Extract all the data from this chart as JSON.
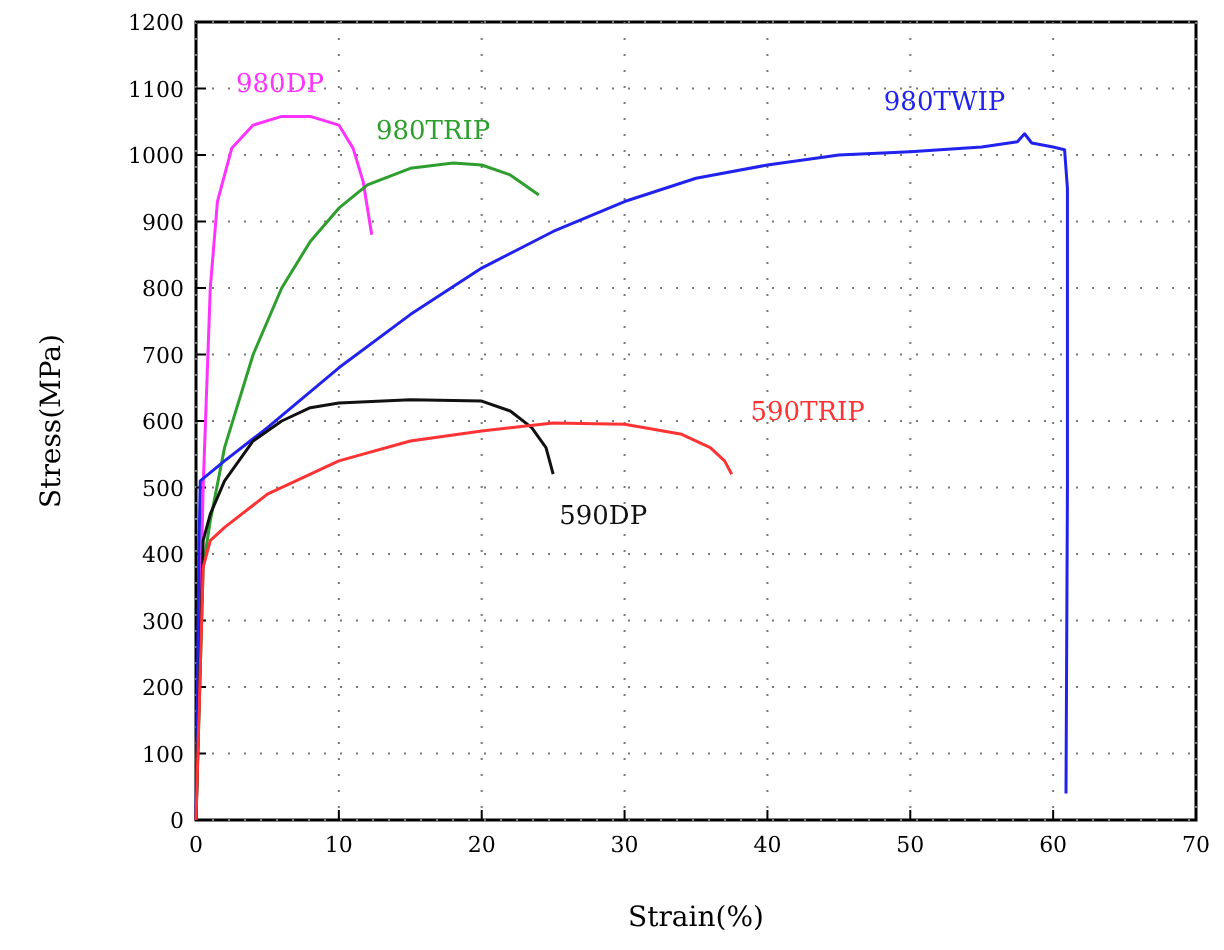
{
  "chart_data": {
    "type": "line",
    "xlabel": "Strain(%)",
    "ylabel": "Stress(MPa)",
    "xlim": [
      0,
      70
    ],
    "ylim": [
      0,
      1200
    ],
    "xticks": [
      0,
      10,
      20,
      30,
      40,
      50,
      60,
      70
    ],
    "yticks": [
      0,
      100,
      200,
      300,
      400,
      500,
      600,
      700,
      800,
      900,
      1000,
      1100,
      1200
    ],
    "grid": true,
    "line_style": "solid",
    "marker": "none",
    "series": [
      {
        "name": "980DP",
        "color": "#ff33ff",
        "x": [
          0,
          0.5,
          1,
          1.5,
          2.5,
          4,
          6,
          8,
          10,
          11,
          11.7,
          12.3
        ],
        "values": [
          0,
          500,
          800,
          930,
          1010,
          1045,
          1058,
          1058,
          1045,
          1010,
          960,
          880
        ]
      },
      {
        "name": "980TRIP",
        "color": "#2e9e2e",
        "x": [
          0,
          0.5,
          1,
          2,
          4,
          6,
          8,
          10,
          12,
          15,
          18,
          20,
          22,
          24
        ],
        "values": [
          0,
          380,
          450,
          560,
          700,
          800,
          870,
          920,
          955,
          980,
          988,
          985,
          970,
          940
        ]
      },
      {
        "name": "980TWIP",
        "color": "#2222ee",
        "x": [
          0,
          0.2,
          0.3,
          2,
          5,
          10,
          15,
          20,
          25,
          30,
          35,
          40,
          45,
          50,
          55,
          57.5,
          58,
          58.5,
          60,
          60.8,
          61,
          61,
          60.9
        ],
        "values": [
          0,
          400,
          510,
          540,
          590,
          680,
          760,
          830,
          885,
          930,
          965,
          985,
          1000,
          1005,
          1012,
          1020,
          1032,
          1018,
          1012,
          1008,
          950,
          500,
          40
        ]
      },
      {
        "name": "590DP",
        "color": "#111111",
        "x": [
          0,
          0.5,
          1,
          2,
          4,
          6,
          8,
          10,
          15,
          20,
          22,
          23.5,
          24.5,
          25
        ],
        "values": [
          0,
          420,
          460,
          510,
          570,
          600,
          620,
          627,
          632,
          630,
          615,
          590,
          560,
          520
        ]
      },
      {
        "name": "590TRIP",
        "color": "#ff3333",
        "x": [
          0,
          0.5,
          1,
          2,
          5,
          10,
          15,
          20,
          25,
          30,
          34,
          36,
          37,
          37.5
        ],
        "values": [
          0,
          380,
          420,
          440,
          490,
          540,
          570,
          585,
          597,
          595,
          580,
          560,
          540,
          520
        ]
      }
    ]
  }
}
